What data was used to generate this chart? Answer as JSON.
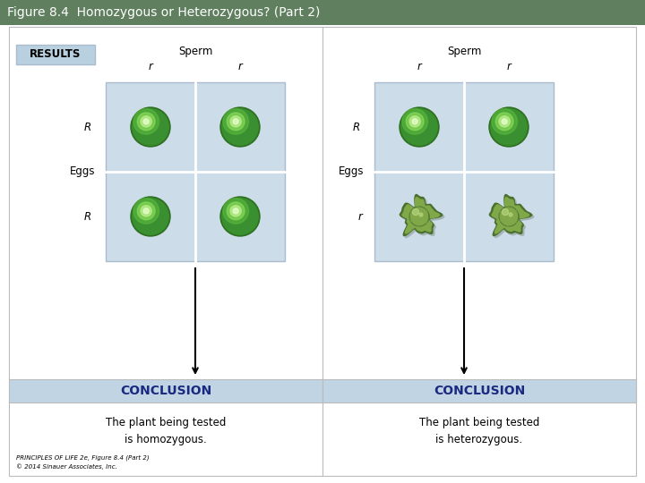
{
  "title": "Figure 8.4  Homozygous or Heterozygous? (Part 2)",
  "title_bg": "#5f7f5f",
  "title_color": "white",
  "title_fontsize": 10,
  "main_bg": "white",
  "panel_bg": "#ccdce8",
  "results_bg": "#b8d0e0",
  "results_text": "RESULTS",
  "conclusion_bg": "#c0d4e4",
  "conclusion_text_color": "#1a2a80",
  "left_sperm_label": "Sperm",
  "left_col_labels": [
    "r",
    "r"
  ],
  "left_row_labels": [
    "R",
    "Eggs",
    "R"
  ],
  "right_sperm_label": "Sperm",
  "right_col_labels": [
    "r",
    "r"
  ],
  "right_row_labels": [
    "R",
    "Eggs",
    "r"
  ],
  "conclusion_left": "CONCLUSION",
  "conclusion_right": "CONCLUSION",
  "conclusion_text_left": "The plant being tested\nis homozygous.",
  "conclusion_text_right": "The plant being tested\nis heterozygous.",
  "footer_line1": "PRINCIPLES OF LIFE 2e, Figure 8.4 (Part 2)",
  "footer_line2": "© 2014 Sinauer Associates, Inc.",
  "round_pea_dark": "#2d7020",
  "round_pea_mid": "#3a9030",
  "round_pea_light": "#aae060",
  "wrinkled_pea_dark": "#4a7030",
  "wrinkled_pea_mid": "#80a848",
  "wrinkled_pea_light": "#c8e090",
  "grid_border_color": "#aabccc",
  "outer_border_color": "#bbbbbb"
}
